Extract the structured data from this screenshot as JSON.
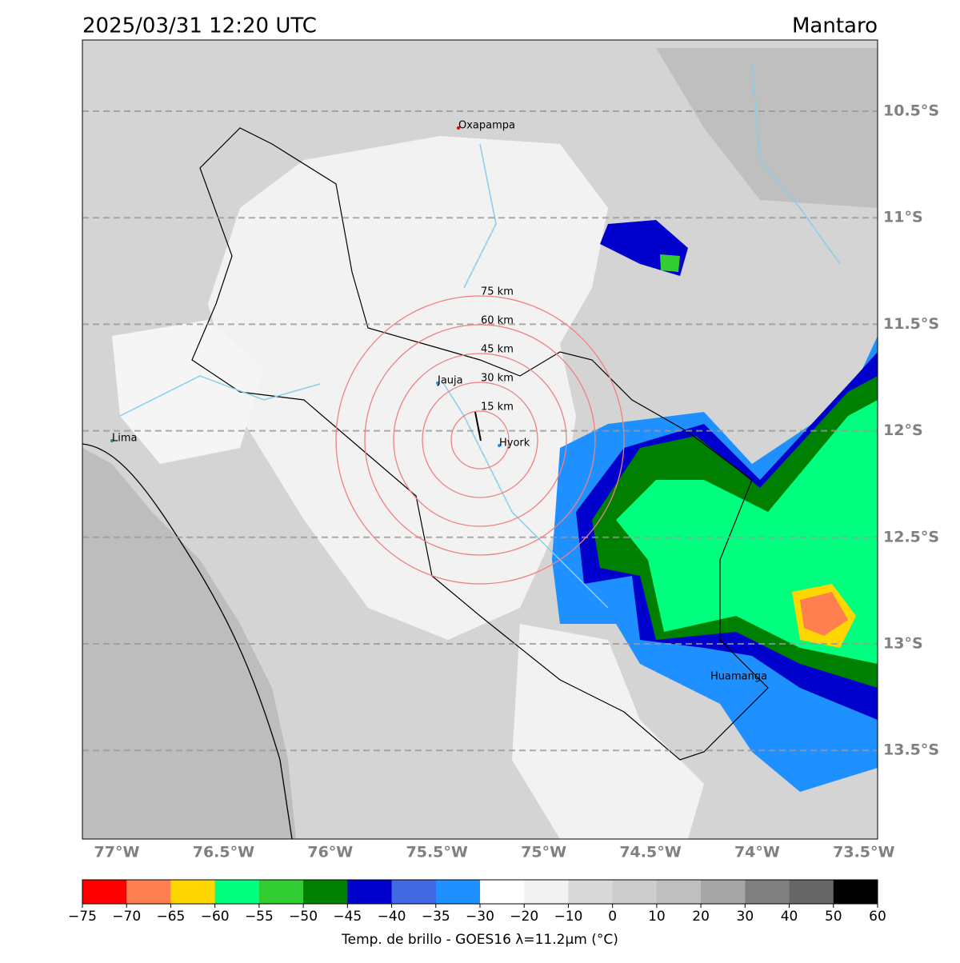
{
  "header": {
    "title": "2025/03/31 12:20 UTC",
    "region": "Mantaro"
  },
  "map": {
    "lat_labels": [
      "10.5°S",
      "11°S",
      "11.5°S",
      "12°S",
      "12.5°S",
      "13°S",
      "13.5°S"
    ],
    "lon_labels": [
      "77°W",
      "76.5°W",
      "76°W",
      "75.5°W",
      "75°W",
      "74.5°W",
      "74°W",
      "73.5°W"
    ],
    "rings": [
      "15 km",
      "30 km",
      "45 km",
      "60 km",
      "75 km"
    ],
    "places": [
      "Oxapampa",
      "Jauja",
      "Lima",
      "Hyork",
      "Huamanga"
    ]
  },
  "colorbar": {
    "ticks": [
      {
        "value": -75,
        "label": "−75"
      },
      {
        "value": -70,
        "label": "−70"
      },
      {
        "value": -65,
        "label": "−65"
      },
      {
        "value": -60,
        "label": "−60"
      },
      {
        "value": -55,
        "label": "−55"
      },
      {
        "value": -50,
        "label": "−50"
      },
      {
        "value": -45,
        "label": "−45"
      },
      {
        "value": -40,
        "label": "−40"
      },
      {
        "value": -35,
        "label": "−35"
      },
      {
        "value": -30,
        "label": "−30"
      },
      {
        "value": -20,
        "label": "−20"
      },
      {
        "value": -10,
        "label": "−10"
      },
      0,
      10,
      20,
      30,
      40,
      50,
      60
    ],
    "colors": [
      "#ff0000",
      "#ff7f50",
      "#ffd700",
      "#00ff7f",
      "#32cd32",
      "#008000",
      "#0000cd",
      "#4169e1",
      "#1e90ff",
      "#ffffff",
      "#f2f2f2",
      "#d9d9d9",
      "#cccccc",
      "#bfbfbf",
      "#a6a6a6",
      "#808080",
      "#666666",
      "#000000"
    ],
    "label": "Temp. de brillo - GOES16 λ=11.2μm (°C)"
  }
}
